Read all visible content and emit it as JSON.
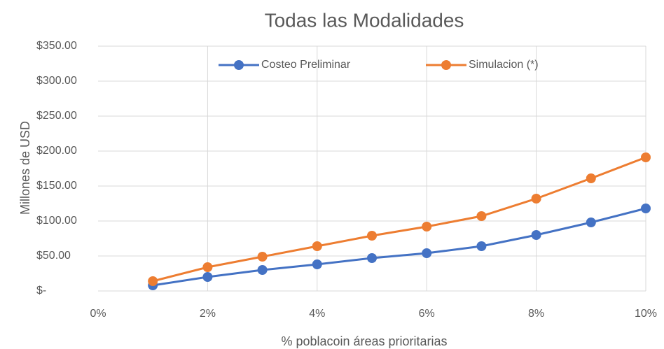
{
  "chart_data": {
    "type": "line",
    "title": "Todas las Modalidades",
    "xlabel": "% poblacoin áreas prioritarias",
    "ylabel": "Millones de USD",
    "x": [
      1,
      2,
      3,
      4,
      5,
      6,
      7,
      8,
      9,
      10
    ],
    "series": [
      {
        "name": "Costeo Preliminar",
        "color": "#4472c4",
        "values": [
          8,
          20,
          30,
          38,
          47,
          54,
          64,
          80,
          98,
          118
        ]
      },
      {
        "name": "Simulacion (*)",
        "color": "#ed7d31",
        "values": [
          14,
          34,
          49,
          64,
          79,
          92,
          107,
          132,
          161,
          191
        ]
      }
    ],
    "xlim": [
      0,
      10
    ],
    "xticks": [
      {
        "value": 0,
        "label": "0%"
      },
      {
        "value": 2,
        "label": "2%"
      },
      {
        "value": 4,
        "label": "4%"
      },
      {
        "value": 6,
        "label": "6%"
      },
      {
        "value": 8,
        "label": "8%"
      },
      {
        "value": 10,
        "label": "10%"
      }
    ],
    "ylim": [
      0,
      350
    ],
    "yticks": [
      {
        "value": 0,
        "label": "$-"
      },
      {
        "value": 50,
        "label": "$50.00"
      },
      {
        "value": 100,
        "label": "$100.00"
      },
      {
        "value": 150,
        "label": "$150.00"
      },
      {
        "value": 200,
        "label": "$200.00"
      },
      {
        "value": 250,
        "label": "$250.00"
      },
      {
        "value": 300,
        "label": "$300.00"
      },
      {
        "value": 350,
        "label": "$350.00"
      }
    ],
    "grid": true,
    "legend": "top"
  }
}
